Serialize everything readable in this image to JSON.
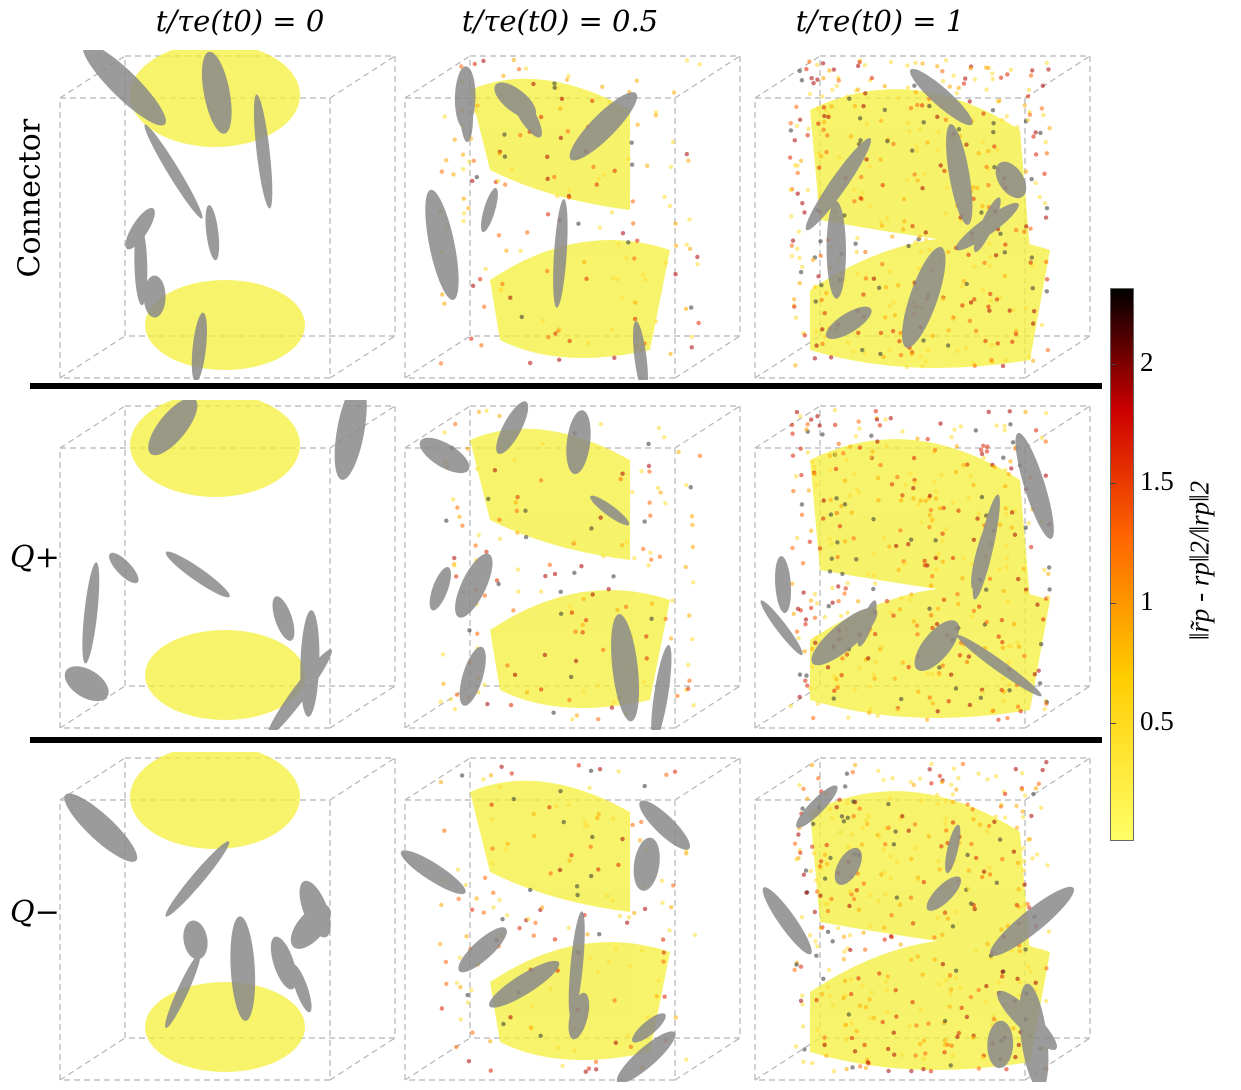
{
  "columns": [
    {
      "title": "t/τe(t0) = 0"
    },
    {
      "title": "t/τe(t0) = 0.5"
    },
    {
      "title": "t/τe(t0) = 1"
    }
  ],
  "rows": [
    {
      "label": "Connector"
    },
    {
      "label": "Q+"
    },
    {
      "label": "Q−"
    }
  ],
  "colorbar": {
    "label": "‖r̃p - rp‖2/‖rp‖2",
    "ticks": [
      "2",
      "1.5",
      "1",
      "0.5"
    ],
    "colors": {
      "low": "#ffff66",
      "mid1": "#ffcc00",
      "mid2": "#ff6600",
      "mid3": "#cc0000",
      "high": "#000000"
    }
  },
  "colors": {
    "vortex": "#8a8a8a",
    "structure": "#f4f03a",
    "box": "#b5b5b5"
  }
}
